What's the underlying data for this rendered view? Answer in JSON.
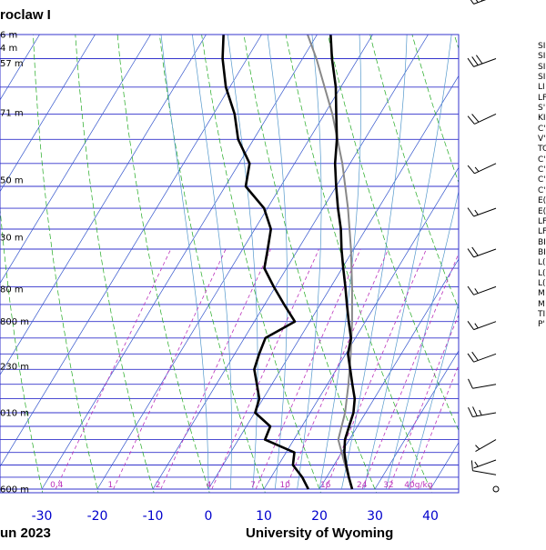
{
  "header": {
    "title": "roclaw I"
  },
  "footer": {
    "date_fragment": "un 2023",
    "source": "University of Wyoming"
  },
  "colors": {
    "isobar": "#3333cc",
    "isotherm": "#3355cc",
    "dry_adiabat": "#22aa22",
    "moist_adiabat": "#5599cc",
    "mixing_ratio": "#bb33bb",
    "sounding": "#000000",
    "parcel": "#888888",
    "temp_tick_label": "#0000cc"
  },
  "chart_data": {
    "type": "skew-t",
    "xlabel": "",
    "ylabel": "",
    "x_tick_labels": [
      "-30",
      "-20",
      "-10",
      "0",
      "10",
      "20",
      "30",
      "40"
    ],
    "x_tick_values": [
      -30,
      -20,
      -10,
      0,
      10,
      20,
      30,
      40
    ],
    "height_labels": [
      {
        "text": "600 m",
        "p": 1000
      },
      {
        "text": "010 m",
        "p": 850
      },
      {
        "text": "230 m",
        "p": 770
      },
      {
        "text": "800 m",
        "p": 700
      },
      {
        "text": "80 m",
        "p": 653
      },
      {
        "text": "30 m",
        "p": 585
      },
      {
        "text": "50 m",
        "p": 518
      },
      {
        "text": "71 m",
        "p": 449
      },
      {
        "text": "57 m",
        "p": 404
      },
      {
        "text": "4 m",
        "p": 391
      },
      {
        "text": "6 m",
        "p": 380
      }
    ],
    "mixing_ratio_labels": [
      "0.4",
      "1",
      "2",
      "4",
      "7",
      "10",
      "16",
      "24",
      "32",
      "40g/kg"
    ],
    "mixing_ratio_values": [
      0.4,
      1,
      2,
      4,
      7,
      10,
      16,
      24,
      32,
      40
    ],
    "temperature_profile": [
      {
        "p": 1000,
        "t": 25.9
      },
      {
        "p": 975,
        "t": 24.0
      },
      {
        "p": 950,
        "t": 22.2
      },
      {
        "p": 925,
        "t": 20.5
      },
      {
        "p": 900,
        "t": 19.2
      },
      {
        "p": 875,
        "t": 18.5
      },
      {
        "p": 850,
        "t": 17.8
      },
      {
        "p": 825,
        "t": 16.5
      },
      {
        "p": 800,
        "t": 14.5
      },
      {
        "p": 775,
        "t": 12.5
      },
      {
        "p": 750,
        "t": 10.4
      },
      {
        "p": 725,
        "t": 9.2
      },
      {
        "p": 700,
        "t": 7.0
      },
      {
        "p": 675,
        "t": 4.8
      },
      {
        "p": 650,
        "t": 2.6
      },
      {
        "p": 625,
        "t": 0.2
      },
      {
        "p": 600,
        "t": -2.2
      },
      {
        "p": 575,
        "t": -4.5
      },
      {
        "p": 550,
        "t": -7.3
      },
      {
        "p": 525,
        "t": -10.0
      },
      {
        "p": 500,
        "t": -12.7
      },
      {
        "p": 475,
        "t": -15.0
      },
      {
        "p": 450,
        "t": -17.9
      },
      {
        "p": 425,
        "t": -20.9
      },
      {
        "p": 400,
        "t": -24.7
      },
      {
        "p": 375,
        "t": -28.3
      },
      {
        "p": 350,
        "t": -32.3
      },
      {
        "p": 325,
        "t": -37.0
      },
      {
        "p": 300,
        "t": -43.2
      }
    ],
    "dewpoint_profile": [
      {
        "p": 1000,
        "t": 18.0
      },
      {
        "p": 975,
        "t": 15.6
      },
      {
        "p": 950,
        "t": 12.6
      },
      {
        "p": 925,
        "t": 11.5
      },
      {
        "p": 900,
        "t": 4.8
      },
      {
        "p": 875,
        "t": 4.3
      },
      {
        "p": 850,
        "t": 0.1
      },
      {
        "p": 825,
        "t": -0.7
      },
      {
        "p": 800,
        "t": -2.7
      },
      {
        "p": 775,
        "t": -4.8
      },
      {
        "p": 750,
        "t": -5.6
      },
      {
        "p": 725,
        "t": -6.2
      },
      {
        "p": 700,
        "t": -2.7
      },
      {
        "p": 675,
        "t": -6.5
      },
      {
        "p": 650,
        "t": -10.3
      },
      {
        "p": 625,
        "t": -14.0
      },
      {
        "p": 600,
        "t": -15.5
      },
      {
        "p": 575,
        "t": -17.1
      },
      {
        "p": 550,
        "t": -20.6
      },
      {
        "p": 525,
        "t": -26.3
      },
      {
        "p": 500,
        "t": -28.1
      },
      {
        "p": 475,
        "t": -32.8
      },
      {
        "p": 450,
        "t": -36.2
      },
      {
        "p": 425,
        "t": -40.7
      },
      {
        "p": 400,
        "t": -44.4
      },
      {
        "p": 375,
        "t": -47.5
      },
      {
        "p": 350,
        "t": -50.3
      },
      {
        "p": 325,
        "t": -55.1
      },
      {
        "p": 300,
        "t": -60.5
      }
    ],
    "parcel_profile": [
      {
        "p": 1000,
        "t": 25.9
      },
      {
        "p": 950,
        "t": 22.0
      },
      {
        "p": 900,
        "t": 18.0
      },
      {
        "p": 850,
        "t": 16.3
      },
      {
        "p": 800,
        "t": 13.8
      },
      {
        "p": 750,
        "t": 10.9
      },
      {
        "p": 700,
        "t": 7.6
      },
      {
        "p": 650,
        "t": 3.8
      },
      {
        "p": 600,
        "t": -0.5
      },
      {
        "p": 550,
        "t": -5.5
      },
      {
        "p": 500,
        "t": -11.4
      },
      {
        "p": 450,
        "t": -18.6
      },
      {
        "p": 400,
        "t": -27.5
      },
      {
        "p": 350,
        "t": -38.5
      },
      {
        "p": 300,
        "t": -52.0
      }
    ],
    "wind_barbs": [
      {
        "p": 1000,
        "dir": 0,
        "kt": 0
      },
      {
        "p": 970,
        "dir": 280,
        "kt": 10
      },
      {
        "p": 940,
        "dir": 250,
        "kt": 5
      },
      {
        "p": 900,
        "dir": 240,
        "kt": 5
      },
      {
        "p": 850,
        "dir": 260,
        "kt": 25
      },
      {
        "p": 800,
        "dir": 260,
        "kt": 10
      },
      {
        "p": 750,
        "dir": 250,
        "kt": 20
      },
      {
        "p": 700,
        "dir": 250,
        "kt": 15
      },
      {
        "p": 650,
        "dir": 250,
        "kt": 15
      },
      {
        "p": 600,
        "dir": 250,
        "kt": 20
      },
      {
        "p": 550,
        "dir": 250,
        "kt": 15
      },
      {
        "p": 500,
        "dir": 245,
        "kt": 15
      },
      {
        "p": 450,
        "dir": 245,
        "kt": 20
      },
      {
        "p": 400,
        "dir": 250,
        "kt": 30
      },
      {
        "p": 350,
        "dir": 250,
        "kt": 30
      },
      {
        "p": 300,
        "dir": 250,
        "kt": 40
      }
    ]
  },
  "station_index_fragments": [
    "SI",
    "SI",
    "SI",
    "SI",
    "LI",
    "LF",
    "S'",
    "KI",
    "C'",
    "V'",
    "TC",
    "C'",
    "C'",
    "C'",
    "C'",
    "E(",
    "E(",
    "LF",
    "LF",
    "BI",
    "BI",
    "L(",
    "L(",
    "L(",
    "M",
    "M",
    "TI",
    "P'"
  ]
}
